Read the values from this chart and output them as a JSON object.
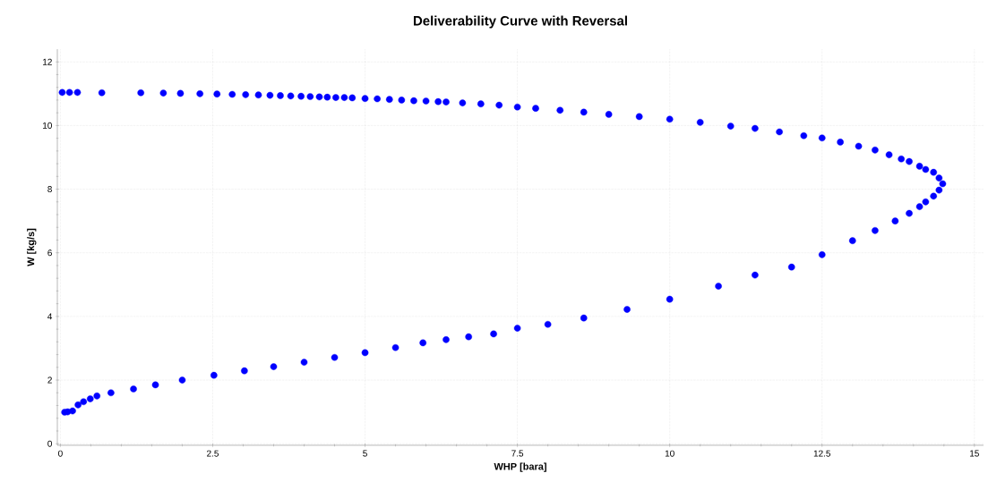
{
  "chart_data": {
    "type": "scatter",
    "title": "Deliverability Curve with Reversal",
    "xlabel": "WHP [bara]",
    "ylabel": "W [kg/s]",
    "x": [
      0.03,
      0.15,
      0.28,
      0.68,
      1.32,
      1.69,
      1.97,
      2.29,
      2.57,
      2.82,
      3.04,
      3.25,
      3.44,
      3.61,
      3.78,
      3.95,
      4.1,
      4.25,
      4.38,
      4.52,
      4.66,
      4.79,
      5.0,
      5.2,
      5.4,
      5.6,
      5.8,
      6.0,
      6.2,
      6.33,
      6.6,
      6.9,
      7.2,
      7.5,
      7.8,
      8.2,
      8.59,
      9.0,
      9.5,
      10.0,
      10.5,
      11.0,
      11.4,
      11.8,
      12.2,
      12.5,
      12.8,
      13.1,
      13.37,
      13.6,
      13.8,
      13.93,
      14.1,
      14.2,
      14.33,
      14.42,
      14.48,
      14.42,
      14.33,
      14.2,
      14.1,
      13.93,
      13.7,
      13.37,
      13.0,
      12.5,
      12.0,
      11.4,
      10.8,
      10.0,
      9.3,
      8.59,
      8.0,
      7.5,
      7.11,
      6.7,
      6.33,
      5.95,
      5.5,
      5.0,
      4.5,
      4.0,
      3.5,
      3.02,
      2.52,
      2.0,
      1.56,
      1.2,
      0.83,
      0.6,
      0.49,
      0.38,
      0.29,
      0.2,
      0.12,
      0.07
    ],
    "values": [
      11.04,
      11.04,
      11.04,
      11.03,
      11.03,
      11.02,
      11.01,
      11.0,
      10.99,
      10.98,
      10.97,
      10.96,
      10.95,
      10.94,
      10.93,
      10.92,
      10.91,
      10.9,
      10.89,
      10.88,
      10.88,
      10.87,
      10.85,
      10.84,
      10.82,
      10.8,
      10.78,
      10.77,
      10.75,
      10.74,
      10.71,
      10.68,
      10.64,
      10.58,
      10.54,
      10.48,
      10.42,
      10.35,
      10.28,
      10.2,
      10.1,
      9.98,
      9.91,
      9.8,
      9.68,
      9.61,
      9.48,
      9.35,
      9.23,
      9.08,
      8.95,
      8.87,
      8.72,
      8.62,
      8.53,
      8.35,
      8.17,
      7.97,
      7.78,
      7.6,
      7.45,
      7.24,
      7.0,
      6.7,
      6.38,
      5.94,
      5.55,
      5.3,
      4.95,
      4.54,
      4.22,
      3.95,
      3.75,
      3.63,
      3.45,
      3.36,
      3.27,
      3.17,
      3.02,
      2.86,
      2.71,
      2.56,
      2.42,
      2.29,
      2.15,
      2.0,
      1.85,
      1.72,
      1.6,
      1.5,
      1.41,
      1.32,
      1.22,
      1.03,
      1.0,
      0.99
    ],
    "color": "#0000ff",
    "marker": "circle",
    "grid": true,
    "xlim": [
      -0.05,
      15.15
    ],
    "ylim": [
      -0.05,
      12.4
    ],
    "xticks": [
      0,
      2.5,
      5,
      7.5,
      10,
      12.5,
      15
    ],
    "yticks": [
      0,
      2,
      4,
      6,
      8,
      10,
      12
    ]
  }
}
